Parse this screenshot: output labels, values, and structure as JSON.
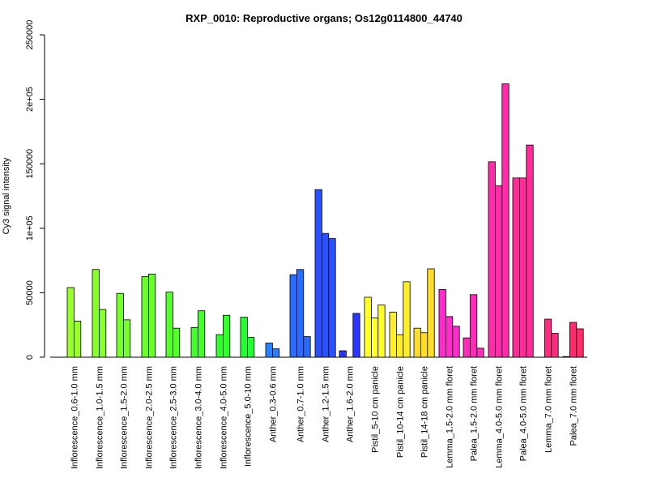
{
  "chart_data": {
    "type": "bar",
    "title": "RXP_0010: Reproductive organs; Os12g0114800_44740",
    "ylabel": "Cy3 signal intensity",
    "xlabel": "",
    "ylim": [
      0,
      250000
    ],
    "yticks": [
      0,
      50000,
      100000,
      150000,
      200000,
      250000
    ],
    "ytick_labels": [
      "0",
      "50000",
      "1e+05",
      "150000",
      "2e+05",
      "250000"
    ],
    "grid": false,
    "legend": "none",
    "groups": [
      {
        "label": "Inflorescence_0.6-1.0 mm",
        "color": "#99ff2b",
        "values": [
          54000,
          28000
        ]
      },
      {
        "label": "Inflorescence_1.0-1.5 mm",
        "color": "#88ff2b",
        "values": [
          68000,
          37000
        ]
      },
      {
        "label": "Inflorescence_1.5-2.0 mm",
        "color": "#77ff2b",
        "values": [
          49500,
          29000
        ]
      },
      {
        "label": "Inflorescence_2.0-2.5 mm",
        "color": "#66ff2b",
        "values": [
          62500,
          64500
        ]
      },
      {
        "label": "Inflorescence_2.5-3.0 mm",
        "color": "#55ff2b",
        "values": [
          50500,
          22500
        ]
      },
      {
        "label": "Inflorescence_3.0-4.0 mm",
        "color": "#44ff2b",
        "values": [
          23000,
          36000
        ]
      },
      {
        "label": "Inflorescence_4.0-5.0 mm",
        "color": "#33ff2b",
        "values": [
          17500,
          32500
        ]
      },
      {
        "label": "Inflorescence_5.0-10 mm",
        "color": "#22ff33",
        "values": [
          31000,
          15500
        ]
      },
      {
        "label": "Anther_0.3-0.6 mm",
        "color": "#2b80ff",
        "values": [
          11000,
          6500
        ]
      },
      {
        "label": "Anther_0.7-1.0 mm",
        "color": "#2b6bff",
        "values": [
          64000,
          68000,
          16000
        ]
      },
      {
        "label": "Anther_1.2-1.5 mm",
        "color": "#2b50ff",
        "values": [
          130000,
          96000,
          92000
        ]
      },
      {
        "label": "Anther_1.6-2.0 mm",
        "color": "#2b35ff",
        "values": [
          5000,
          0,
          34000
        ]
      },
      {
        "label": "Pistil_5-10 cm panicle",
        "color": "#ffff2b",
        "values": [
          46500,
          30500,
          40500
        ]
      },
      {
        "label": "Pistil_10-14 cm panicle",
        "color": "#ffee2b",
        "values": [
          35000,
          17500,
          58500
        ]
      },
      {
        "label": "Pistil_14-18 cm panicle",
        "color": "#ffdd2b",
        "values": [
          22500,
          19000,
          68500
        ]
      },
      {
        "label": "Lemma_1.5-2.0 mm floret",
        "color": "#ff2bcc",
        "values": [
          52500,
          31500,
          24000
        ]
      },
      {
        "label": "Palea_1.5-2.0 mm floret",
        "color": "#ff2bbb",
        "values": [
          15000,
          48500,
          7000
        ]
      },
      {
        "label": "Lemma_4.0-5.0 mm floret",
        "color": "#ff2baa",
        "values": [
          151500,
          133000,
          212000
        ]
      },
      {
        "label": "Palea_4.0-5.0 mm floret",
        "color": "#ff2b99",
        "values": [
          139000,
          139000,
          164500
        ]
      },
      {
        "label": "Lemma_7.0 mm floret",
        "color": "#ff2b80",
        "values": [
          0,
          29500,
          18500
        ]
      },
      {
        "label": "Palea_7.0 mm floret",
        "color": "#ff2b6b",
        "values": [
          500,
          27000,
          22000
        ]
      }
    ]
  }
}
